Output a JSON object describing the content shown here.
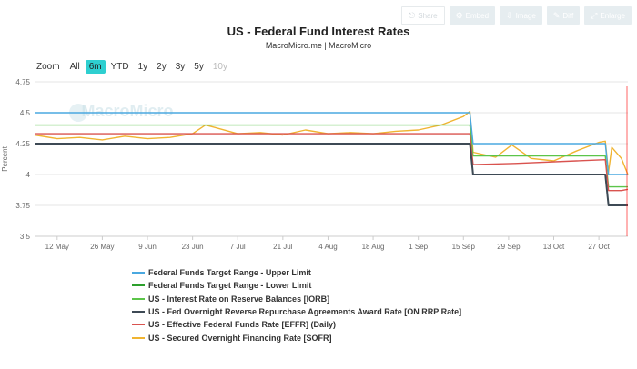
{
  "toolbar": {
    "share": "Share",
    "embed": "Embed",
    "image": "Image",
    "diff": "Diff",
    "enlarge": "Enlarge"
  },
  "title": "US - Federal Fund Interest Rates",
  "subtitle": "MacroMicro.me | MacroMicro",
  "watermark": "MacroMicro",
  "zoom": {
    "label": "Zoom",
    "options": [
      "All",
      "6m",
      "YTD",
      "1y",
      "2y",
      "3y",
      "5y",
      "10y"
    ],
    "selected": "6m",
    "disabled": [
      "10y"
    ]
  },
  "colors": {
    "upper": "#4aa8e0",
    "lower": "#2ca02c",
    "iorb": "#5cc54a",
    "onrrp": "#3e4a55",
    "effr": "#d9534f",
    "sofr": "#f0b431",
    "zoom_active": "#2ecfd0",
    "plot_line": "#ff0000"
  },
  "chart_data": {
    "type": "line",
    "title": "US - Federal Fund Interest Rates",
    "ylabel": "Percent",
    "ylim": [
      3.5,
      4.75
    ],
    "yticks": [
      3.5,
      3.75,
      4,
      4.25,
      4.5,
      4.75
    ],
    "ytick_labels": [
      "3.5",
      "3.75",
      "4",
      "4.25",
      "4.5",
      "4.75"
    ],
    "xlim": [
      "2025-05-05",
      "2025-11-05"
    ],
    "x_ticks": [
      "2025-05-12",
      "2025-05-26",
      "2025-06-09",
      "2025-06-23",
      "2025-07-07",
      "2025-07-21",
      "2025-08-04",
      "2025-08-18",
      "2025-09-01",
      "2025-09-15",
      "2025-09-29",
      "2025-10-13",
      "2025-10-27"
    ],
    "x_tick_labels": [
      "12 May",
      "26 May",
      "9 Jun",
      "23 Jun",
      "7 Jul",
      "21 Jul",
      "4 Aug",
      "18 Aug",
      "1 Sep",
      "15 Sep",
      "29 Sep",
      "13 Oct",
      "27 Oct"
    ],
    "grid": "horizontal",
    "legend_position": "bottom",
    "series": [
      {
        "key": "upper",
        "name": "Federal Funds Target Range - Upper Limit",
        "x": [
          "2025-05-05",
          "2025-09-17",
          "2025-09-18",
          "2025-10-29",
          "2025-10-30",
          "2025-11-05"
        ],
        "y": [
          4.5,
          4.5,
          4.25,
          4.25,
          4.0,
          4.0
        ]
      },
      {
        "key": "lower",
        "name": "Federal Funds Target Range - Lower Limit",
        "x": [
          "2025-05-05",
          "2025-09-17",
          "2025-09-18",
          "2025-10-29",
          "2025-10-30",
          "2025-11-05"
        ],
        "y": [
          4.25,
          4.25,
          4.0,
          4.0,
          3.75,
          3.75
        ]
      },
      {
        "key": "iorb",
        "name": "US - Interest Rate on Reserve Balances [IORB]",
        "x": [
          "2025-05-05",
          "2025-09-17",
          "2025-09-18",
          "2025-10-29",
          "2025-10-30",
          "2025-11-05"
        ],
        "y": [
          4.4,
          4.4,
          4.15,
          4.15,
          3.9,
          3.9
        ]
      },
      {
        "key": "onrrp",
        "name": "US - Fed Overnight Reverse Repurchase Agreements Award Rate [ON RRP Rate]",
        "x": [
          "2025-05-05",
          "2025-09-17",
          "2025-09-18",
          "2025-10-29",
          "2025-10-30",
          "2025-11-05"
        ],
        "y": [
          4.25,
          4.25,
          4.0,
          4.0,
          3.75,
          3.75
        ]
      },
      {
        "key": "effr",
        "name": "US - Effective Federal Funds Rate [EFFR] (Daily)",
        "x": [
          "2025-05-05",
          "2025-06-10",
          "2025-07-01",
          "2025-09-17",
          "2025-09-18",
          "2025-10-01",
          "2025-10-20",
          "2025-10-29",
          "2025-10-30",
          "2025-11-03",
          "2025-11-05"
        ],
        "y": [
          4.33,
          4.33,
          4.33,
          4.33,
          4.08,
          4.09,
          4.11,
          4.12,
          3.87,
          3.87,
          3.88
        ]
      },
      {
        "key": "sofr",
        "name": "US - Secured Overnight Financing Rate [SOFR]",
        "x": [
          "2025-05-05",
          "2025-05-12",
          "2025-05-19",
          "2025-05-26",
          "2025-06-02",
          "2025-06-09",
          "2025-06-16",
          "2025-06-23",
          "2025-06-27",
          "2025-06-30",
          "2025-07-07",
          "2025-07-14",
          "2025-07-21",
          "2025-07-28",
          "2025-08-04",
          "2025-08-11",
          "2025-08-18",
          "2025-08-25",
          "2025-09-01",
          "2025-09-08",
          "2025-09-15",
          "2025-09-17",
          "2025-09-18",
          "2025-09-25",
          "2025-09-30",
          "2025-10-06",
          "2025-10-13",
          "2025-10-20",
          "2025-10-27",
          "2025-10-29",
          "2025-10-30",
          "2025-10-31",
          "2025-11-03",
          "2025-11-05"
        ],
        "y": [
          4.32,
          4.29,
          4.3,
          4.28,
          4.31,
          4.29,
          4.3,
          4.33,
          4.4,
          4.38,
          4.33,
          4.34,
          4.32,
          4.36,
          4.33,
          4.34,
          4.33,
          4.35,
          4.36,
          4.4,
          4.47,
          4.51,
          4.18,
          4.14,
          4.24,
          4.13,
          4.11,
          4.19,
          4.26,
          4.27,
          4.02,
          4.22,
          4.13,
          4.0
        ]
      }
    ]
  }
}
